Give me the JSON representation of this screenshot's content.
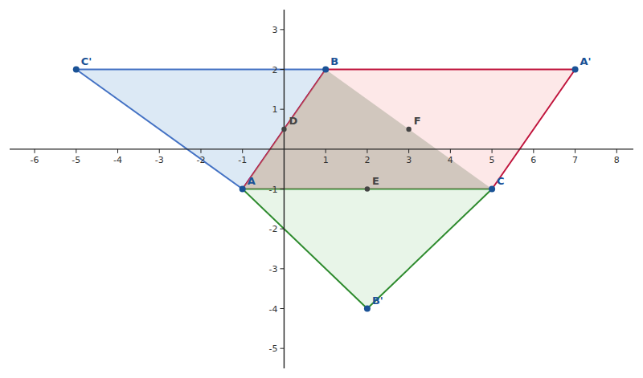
{
  "chart_data": {
    "type": "scatter",
    "xlim": [
      -6.6,
      8.4
    ],
    "ylim": [
      -5.5,
      3.5
    ],
    "xticks": [
      -6,
      -5,
      -4,
      -3,
      -2,
      -1,
      1,
      2,
      3,
      4,
      5,
      6,
      7,
      8
    ],
    "yticks": [
      -5,
      -4,
      -3,
      -2,
      -1,
      1,
      2,
      3
    ],
    "grid": false,
    "series": [
      {
        "type": "polygon",
        "x": [
          -5,
          1,
          -1
        ],
        "values": [
          2,
          2,
          -1
        ],
        "color": "#4472c4",
        "fill": "#dce9f5"
      },
      {
        "type": "polygon",
        "x": [
          1,
          7,
          5,
          -1
        ],
        "values": [
          2,
          2,
          -1,
          -1
        ],
        "color": "#c0143c",
        "fill": "#fde8e8"
      },
      {
        "type": "polygon",
        "x": [
          -1,
          2,
          5
        ],
        "values": [
          -1,
          -4,
          -1
        ],
        "color": "#2e8b2e",
        "fill": "#e8f5e8"
      },
      {
        "type": "polygon",
        "x": [
          1,
          5,
          -1
        ],
        "values": [
          2,
          -1,
          -1
        ],
        "fill": "#a8a898"
      },
      {
        "type": "scatter",
        "color": "#1a5296",
        "labels": [
          "B",
          "A",
          "C",
          "A'",
          "B'",
          "C'"
        ],
        "x": [
          1,
          -1,
          5,
          7,
          2,
          -5
        ],
        "values": [
          2,
          -1,
          -1,
          2,
          -4,
          2
        ]
      },
      {
        "type": "scatter",
        "color": "#444444",
        "labels": [
          "D",
          "E",
          "F"
        ],
        "x": [
          0,
          2,
          3
        ],
        "values": [
          0.5,
          -1,
          0.5
        ]
      }
    ]
  }
}
